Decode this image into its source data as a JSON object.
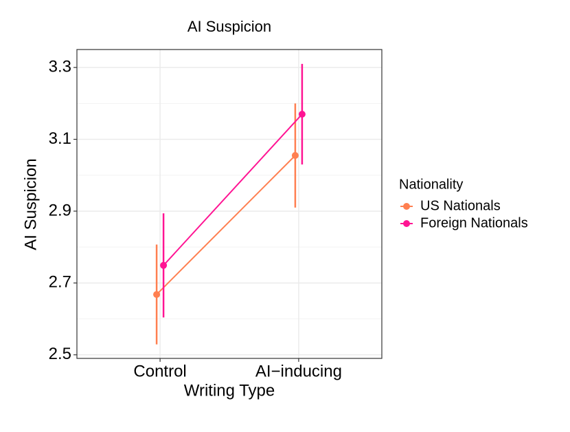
{
  "chart_data": {
    "type": "line",
    "title": "AI Suspicion",
    "x_label": "Writing Type",
    "y_label": "AI Suspicion",
    "categories": [
      "Control",
      "AI−inducing"
    ],
    "series": [
      {
        "name": "US Nationals",
        "color": "#ff7f50",
        "values": [
          2.668,
          3.055
        ],
        "errors": [
          0.139,
          0.145
        ]
      },
      {
        "name": "Foreign Nationals",
        "color": "#ff1493",
        "values": [
          2.749,
          3.17
        ],
        "errors": [
          0.145,
          0.14
        ]
      }
    ],
    "ylim": [
      2.49,
      3.35
    ],
    "yticks": [
      2.5,
      2.7,
      2.9,
      3.1,
      3.3
    ],
    "grid": true,
    "legend_title": "Nationality",
    "legend_position": "right"
  }
}
